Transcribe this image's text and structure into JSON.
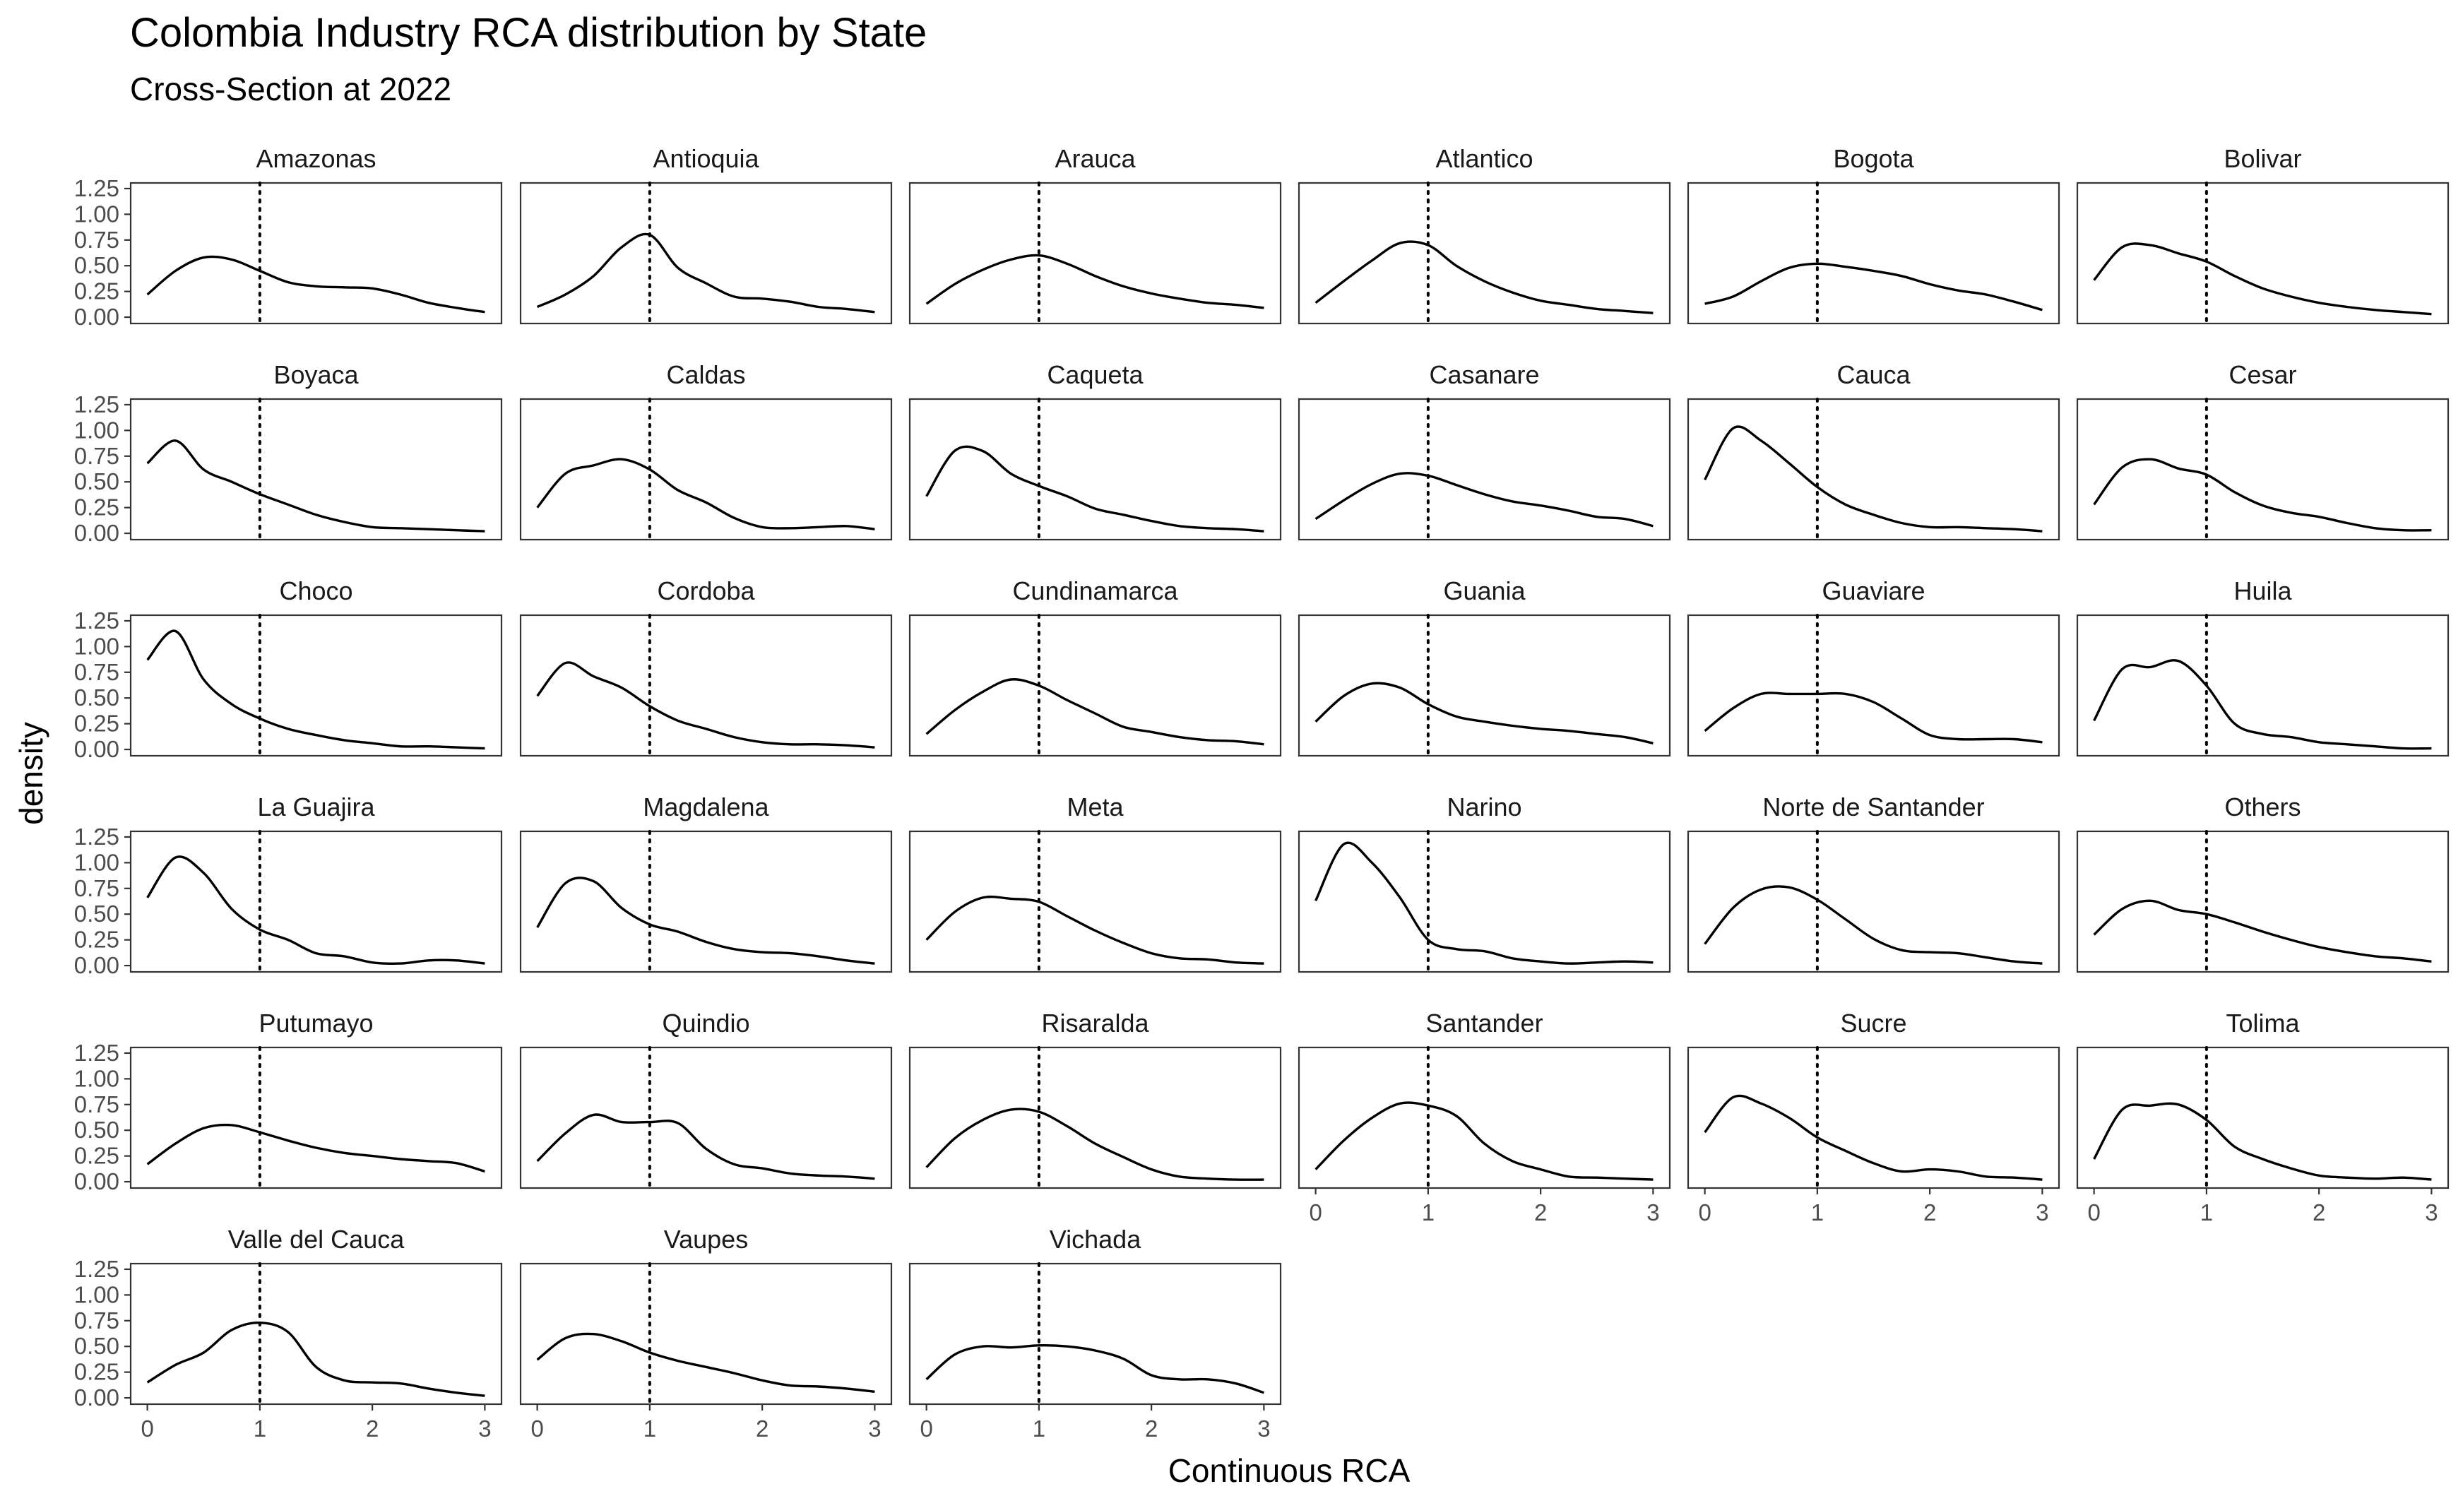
{
  "chart_data": {
    "type": "line",
    "title": "Colombia Industry RCA distribution by State",
    "subtitle": "Cross-Section at 2022",
    "xlabel": "Continuous RCA",
    "ylabel": "density",
    "xlim": [
      0,
      3
    ],
    "ylim": [
      0,
      1.25
    ],
    "x_ticks": [
      0,
      1,
      2,
      3
    ],
    "y_ticks": [
      0.0,
      0.25,
      0.5,
      0.75,
      1.0,
      1.25
    ],
    "x_tick_labels": [
      "0",
      "1",
      "2",
      "3"
    ],
    "y_tick_labels": [
      "0.00",
      "0.25",
      "0.50",
      "0.75",
      "1.00",
      "1.25"
    ],
    "reference_line": {
      "x": 1,
      "style": "dotted"
    },
    "grid": false,
    "line_color": "#000000",
    "x": [
      0,
      0.25,
      0.5,
      0.75,
      1,
      1.25,
      1.5,
      1.75,
      2,
      2.25,
      2.5,
      2.75,
      3
    ],
    "panels": [
      {
        "name": "Amazonas",
        "values": [
          0.22,
          0.45,
          0.58,
          0.56,
          0.45,
          0.34,
          0.3,
          0.29,
          0.28,
          0.22,
          0.14,
          0.09,
          0.05
        ]
      },
      {
        "name": "Antioquia",
        "values": [
          0.1,
          0.22,
          0.4,
          0.68,
          0.8,
          0.48,
          0.33,
          0.2,
          0.18,
          0.15,
          0.1,
          0.08,
          0.05
        ]
      },
      {
        "name": "Arauca",
        "values": [
          0.13,
          0.32,
          0.46,
          0.56,
          0.6,
          0.52,
          0.4,
          0.3,
          0.23,
          0.18,
          0.14,
          0.12,
          0.09
        ]
      },
      {
        "name": "Atlantico",
        "values": [
          0.14,
          0.35,
          0.55,
          0.72,
          0.7,
          0.5,
          0.35,
          0.24,
          0.16,
          0.12,
          0.08,
          0.06,
          0.04
        ]
      },
      {
        "name": "Bogota",
        "values": [
          0.13,
          0.2,
          0.35,
          0.48,
          0.52,
          0.49,
          0.45,
          0.4,
          0.32,
          0.26,
          0.22,
          0.15,
          0.07
        ]
      },
      {
        "name": "Bolivar",
        "values": [
          0.36,
          0.68,
          0.7,
          0.62,
          0.54,
          0.4,
          0.28,
          0.2,
          0.14,
          0.1,
          0.07,
          0.05,
          0.03
        ]
      },
      {
        "name": "Boyaca",
        "values": [
          0.68,
          0.9,
          0.62,
          0.5,
          0.38,
          0.28,
          0.18,
          0.11,
          0.06,
          0.05,
          0.04,
          0.03,
          0.02
        ]
      },
      {
        "name": "Caldas",
        "values": [
          0.25,
          0.58,
          0.66,
          0.72,
          0.62,
          0.42,
          0.3,
          0.15,
          0.06,
          0.05,
          0.06,
          0.07,
          0.04
        ]
      },
      {
        "name": "Caqueta",
        "values": [
          0.36,
          0.8,
          0.8,
          0.58,
          0.46,
          0.36,
          0.24,
          0.18,
          0.12,
          0.07,
          0.05,
          0.04,
          0.02
        ]
      },
      {
        "name": "Casanare",
        "values": [
          0.14,
          0.32,
          0.48,
          0.58,
          0.56,
          0.47,
          0.38,
          0.31,
          0.27,
          0.22,
          0.16,
          0.14,
          0.07
        ]
      },
      {
        "name": "Cauca",
        "values": [
          0.52,
          1.02,
          0.9,
          0.68,
          0.45,
          0.28,
          0.18,
          0.1,
          0.06,
          0.06,
          0.05,
          0.04,
          0.02
        ]
      },
      {
        "name": "Cesar",
        "values": [
          0.28,
          0.64,
          0.72,
          0.63,
          0.57,
          0.4,
          0.27,
          0.2,
          0.16,
          0.1,
          0.05,
          0.03,
          0.03
        ]
      },
      {
        "name": "Choco",
        "values": [
          0.87,
          1.15,
          0.68,
          0.44,
          0.3,
          0.2,
          0.14,
          0.09,
          0.06,
          0.03,
          0.03,
          0.02,
          0.01
        ]
      },
      {
        "name": "Cordoba",
        "values": [
          0.52,
          0.84,
          0.71,
          0.6,
          0.42,
          0.28,
          0.2,
          0.12,
          0.07,
          0.05,
          0.05,
          0.04,
          0.02
        ]
      },
      {
        "name": "Cundinamarca",
        "values": [
          0.15,
          0.38,
          0.56,
          0.68,
          0.62,
          0.48,
          0.35,
          0.22,
          0.17,
          0.12,
          0.09,
          0.08,
          0.05
        ]
      },
      {
        "name": "Guania",
        "values": [
          0.27,
          0.52,
          0.64,
          0.6,
          0.44,
          0.32,
          0.27,
          0.23,
          0.2,
          0.18,
          0.15,
          0.12,
          0.06
        ]
      },
      {
        "name": "Guaviare",
        "values": [
          0.18,
          0.4,
          0.54,
          0.54,
          0.54,
          0.54,
          0.46,
          0.3,
          0.14,
          0.1,
          0.1,
          0.1,
          0.07
        ]
      },
      {
        "name": "Huila",
        "values": [
          0.28,
          0.78,
          0.8,
          0.86,
          0.62,
          0.25,
          0.15,
          0.12,
          0.07,
          0.05,
          0.03,
          0.01,
          0.01
        ]
      },
      {
        "name": "La Guajira",
        "values": [
          0.66,
          1.05,
          0.9,
          0.55,
          0.35,
          0.25,
          0.12,
          0.09,
          0.03,
          0.02,
          0.05,
          0.05,
          0.02
        ]
      },
      {
        "name": "Magdalena",
        "values": [
          0.37,
          0.8,
          0.82,
          0.56,
          0.4,
          0.33,
          0.23,
          0.16,
          0.13,
          0.12,
          0.09,
          0.05,
          0.02
        ]
      },
      {
        "name": "Meta",
        "values": [
          0.25,
          0.52,
          0.66,
          0.65,
          0.62,
          0.48,
          0.34,
          0.22,
          0.12,
          0.07,
          0.06,
          0.03,
          0.02
        ]
      },
      {
        "name": "Narino",
        "values": [
          0.63,
          1.18,
          1.0,
          0.66,
          0.25,
          0.16,
          0.14,
          0.07,
          0.04,
          0.02,
          0.03,
          0.04,
          0.03
        ]
      },
      {
        "name": "Norte de Santander",
        "values": [
          0.21,
          0.56,
          0.74,
          0.76,
          0.64,
          0.45,
          0.26,
          0.15,
          0.13,
          0.12,
          0.08,
          0.04,
          0.02
        ]
      },
      {
        "name": "Others",
        "values": [
          0.3,
          0.55,
          0.63,
          0.54,
          0.5,
          0.42,
          0.33,
          0.25,
          0.18,
          0.13,
          0.09,
          0.07,
          0.04
        ]
      },
      {
        "name": "Putumayo",
        "values": [
          0.17,
          0.37,
          0.52,
          0.55,
          0.48,
          0.4,
          0.33,
          0.28,
          0.25,
          0.22,
          0.2,
          0.18,
          0.1
        ]
      },
      {
        "name": "Quindio",
        "values": [
          0.2,
          0.47,
          0.65,
          0.58,
          0.58,
          0.57,
          0.32,
          0.17,
          0.13,
          0.08,
          0.06,
          0.05,
          0.03
        ]
      },
      {
        "name": "Risaralda",
        "values": [
          0.14,
          0.42,
          0.6,
          0.7,
          0.68,
          0.54,
          0.37,
          0.24,
          0.12,
          0.05,
          0.03,
          0.02,
          0.02
        ]
      },
      {
        "name": "Santander",
        "values": [
          0.12,
          0.4,
          0.62,
          0.76,
          0.74,
          0.64,
          0.37,
          0.2,
          0.12,
          0.05,
          0.04,
          0.03,
          0.02
        ]
      },
      {
        "name": "Sucre",
        "values": [
          0.48,
          0.82,
          0.76,
          0.62,
          0.43,
          0.3,
          0.18,
          0.1,
          0.12,
          0.1,
          0.05,
          0.04,
          0.02
        ]
      },
      {
        "name": "Tolima",
        "values": [
          0.22,
          0.7,
          0.74,
          0.75,
          0.6,
          0.34,
          0.22,
          0.13,
          0.06,
          0.04,
          0.03,
          0.04,
          0.02
        ]
      },
      {
        "name": "Valle del Cauca",
        "values": [
          0.15,
          0.32,
          0.44,
          0.66,
          0.73,
          0.64,
          0.3,
          0.17,
          0.15,
          0.14,
          0.09,
          0.05,
          0.02
        ]
      },
      {
        "name": "Vaupes",
        "values": [
          0.37,
          0.58,
          0.62,
          0.55,
          0.44,
          0.36,
          0.3,
          0.24,
          0.17,
          0.12,
          0.11,
          0.09,
          0.06
        ]
      },
      {
        "name": "Vichada",
        "values": [
          0.18,
          0.42,
          0.5,
          0.49,
          0.51,
          0.5,
          0.46,
          0.38,
          0.22,
          0.18,
          0.18,
          0.14,
          0.05
        ]
      }
    ]
  }
}
